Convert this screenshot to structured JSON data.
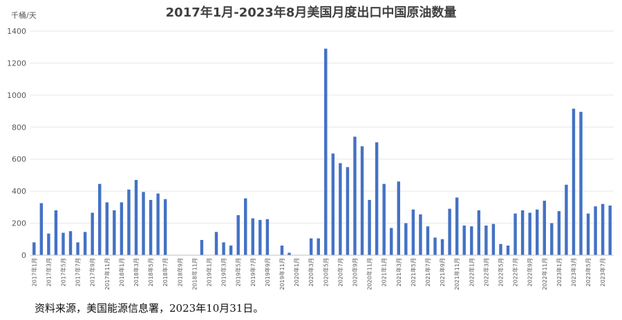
{
  "chart_data": {
    "type": "bar",
    "title": "2017年1月-2023年8月美国月度出口中国原油数量",
    "unit": "千桶/天",
    "ylim": [
      0,
      1400
    ],
    "yticks": [
      0,
      200,
      400,
      600,
      800,
      1000,
      1200,
      1400
    ],
    "grid": true,
    "bar_color": "#4472C4",
    "categories": [
      "2017年1月",
      "2017年2月",
      "2017年3月",
      "2017年4月",
      "2017年5月",
      "2017年6月",
      "2017年7月",
      "2017年8月",
      "2017年9月",
      "2017年10月",
      "2017年11月",
      "2017年12月",
      "2018年1月",
      "2018年2月",
      "2018年3月",
      "2018年4月",
      "2018年5月",
      "2018年6月",
      "2018年7月",
      "2018年8月",
      "2018年9月",
      "2018年10月",
      "2018年11月",
      "2018年12月",
      "2019年1月",
      "2019年2月",
      "2019年3月",
      "2019年4月",
      "2019年5月",
      "2019年6月",
      "2019年7月",
      "2019年8月",
      "2019年9月",
      "2019年10月",
      "2019年11月",
      "2019年12月",
      "2020年1月",
      "2020年2月",
      "2020年3月",
      "2020年4月",
      "2020年5月",
      "2020年6月",
      "2020年7月",
      "2020年8月",
      "2020年9月",
      "2020年10月",
      "2020年11月",
      "2020年12月",
      "2021年1月",
      "2021年2月",
      "2021年3月",
      "2021年4月",
      "2021年5月",
      "2021年6月",
      "2021年7月",
      "2021年8月",
      "2021年9月",
      "2021年10月",
      "2021年11月",
      "2021年12月",
      "2022年1月",
      "2022年2月",
      "2022年3月",
      "2022年4月",
      "2022年5月",
      "2022年6月",
      "2022年7月",
      "2022年8月",
      "2022年9月",
      "2022年10月",
      "2022年11月",
      "2022年12月",
      "2023年1月",
      "2023年2月",
      "2023年3月",
      "2023年4月",
      "2023年5月",
      "2023年6月",
      "2023年7月",
      "2023年8月"
    ],
    "values": [
      80,
      325,
      135,
      280,
      140,
      150,
      80,
      145,
      265,
      445,
      330,
      280,
      330,
      410,
      470,
      395,
      345,
      385,
      350,
      0,
      0,
      0,
      0,
      95,
      0,
      145,
      80,
      60,
      250,
      355,
      230,
      220,
      225,
      0,
      60,
      15,
      0,
      0,
      105,
      105,
      1290,
      635,
      575,
      550,
      740,
      680,
      345,
      705,
      445,
      170,
      460,
      200,
      285,
      255,
      180,
      110,
      100,
      290,
      360,
      185,
      180,
      280,
      185,
      195,
      70,
      60,
      260,
      280,
      265,
      285,
      340,
      200,
      275,
      440,
      915,
      895,
      260,
      305,
      320,
      310
    ],
    "x_tick_labels": [
      "2017年1月",
      "2017年3月",
      "2017年5月",
      "2017年7月",
      "2017年9月",
      "2017年11月",
      "2018年1月",
      "2018年3月",
      "2018年5月",
      "2018年7月",
      "2018年9月",
      "2018年11月",
      "2019年1月",
      "2019年3月",
      "2019年5月",
      "2019年7月",
      "2019年9月",
      "2019年11月",
      "2020年1月",
      "2020年3月",
      "2020年5月",
      "2020年7月",
      "2020年9月",
      "2020年11月",
      "2021年1月",
      "2021年3月",
      "2021年5月",
      "2021年7月",
      "2021年9月",
      "2021年11月",
      "2022年1月",
      "2022年3月",
      "2022年5月",
      "2022年7月",
      "2022年9月",
      "2022年11月",
      "2023年1月",
      "2023年3月",
      "2023年5月",
      "2023年7月"
    ]
  },
  "source_note": "资料来源，美国能源信息署，2023年10月31日。"
}
